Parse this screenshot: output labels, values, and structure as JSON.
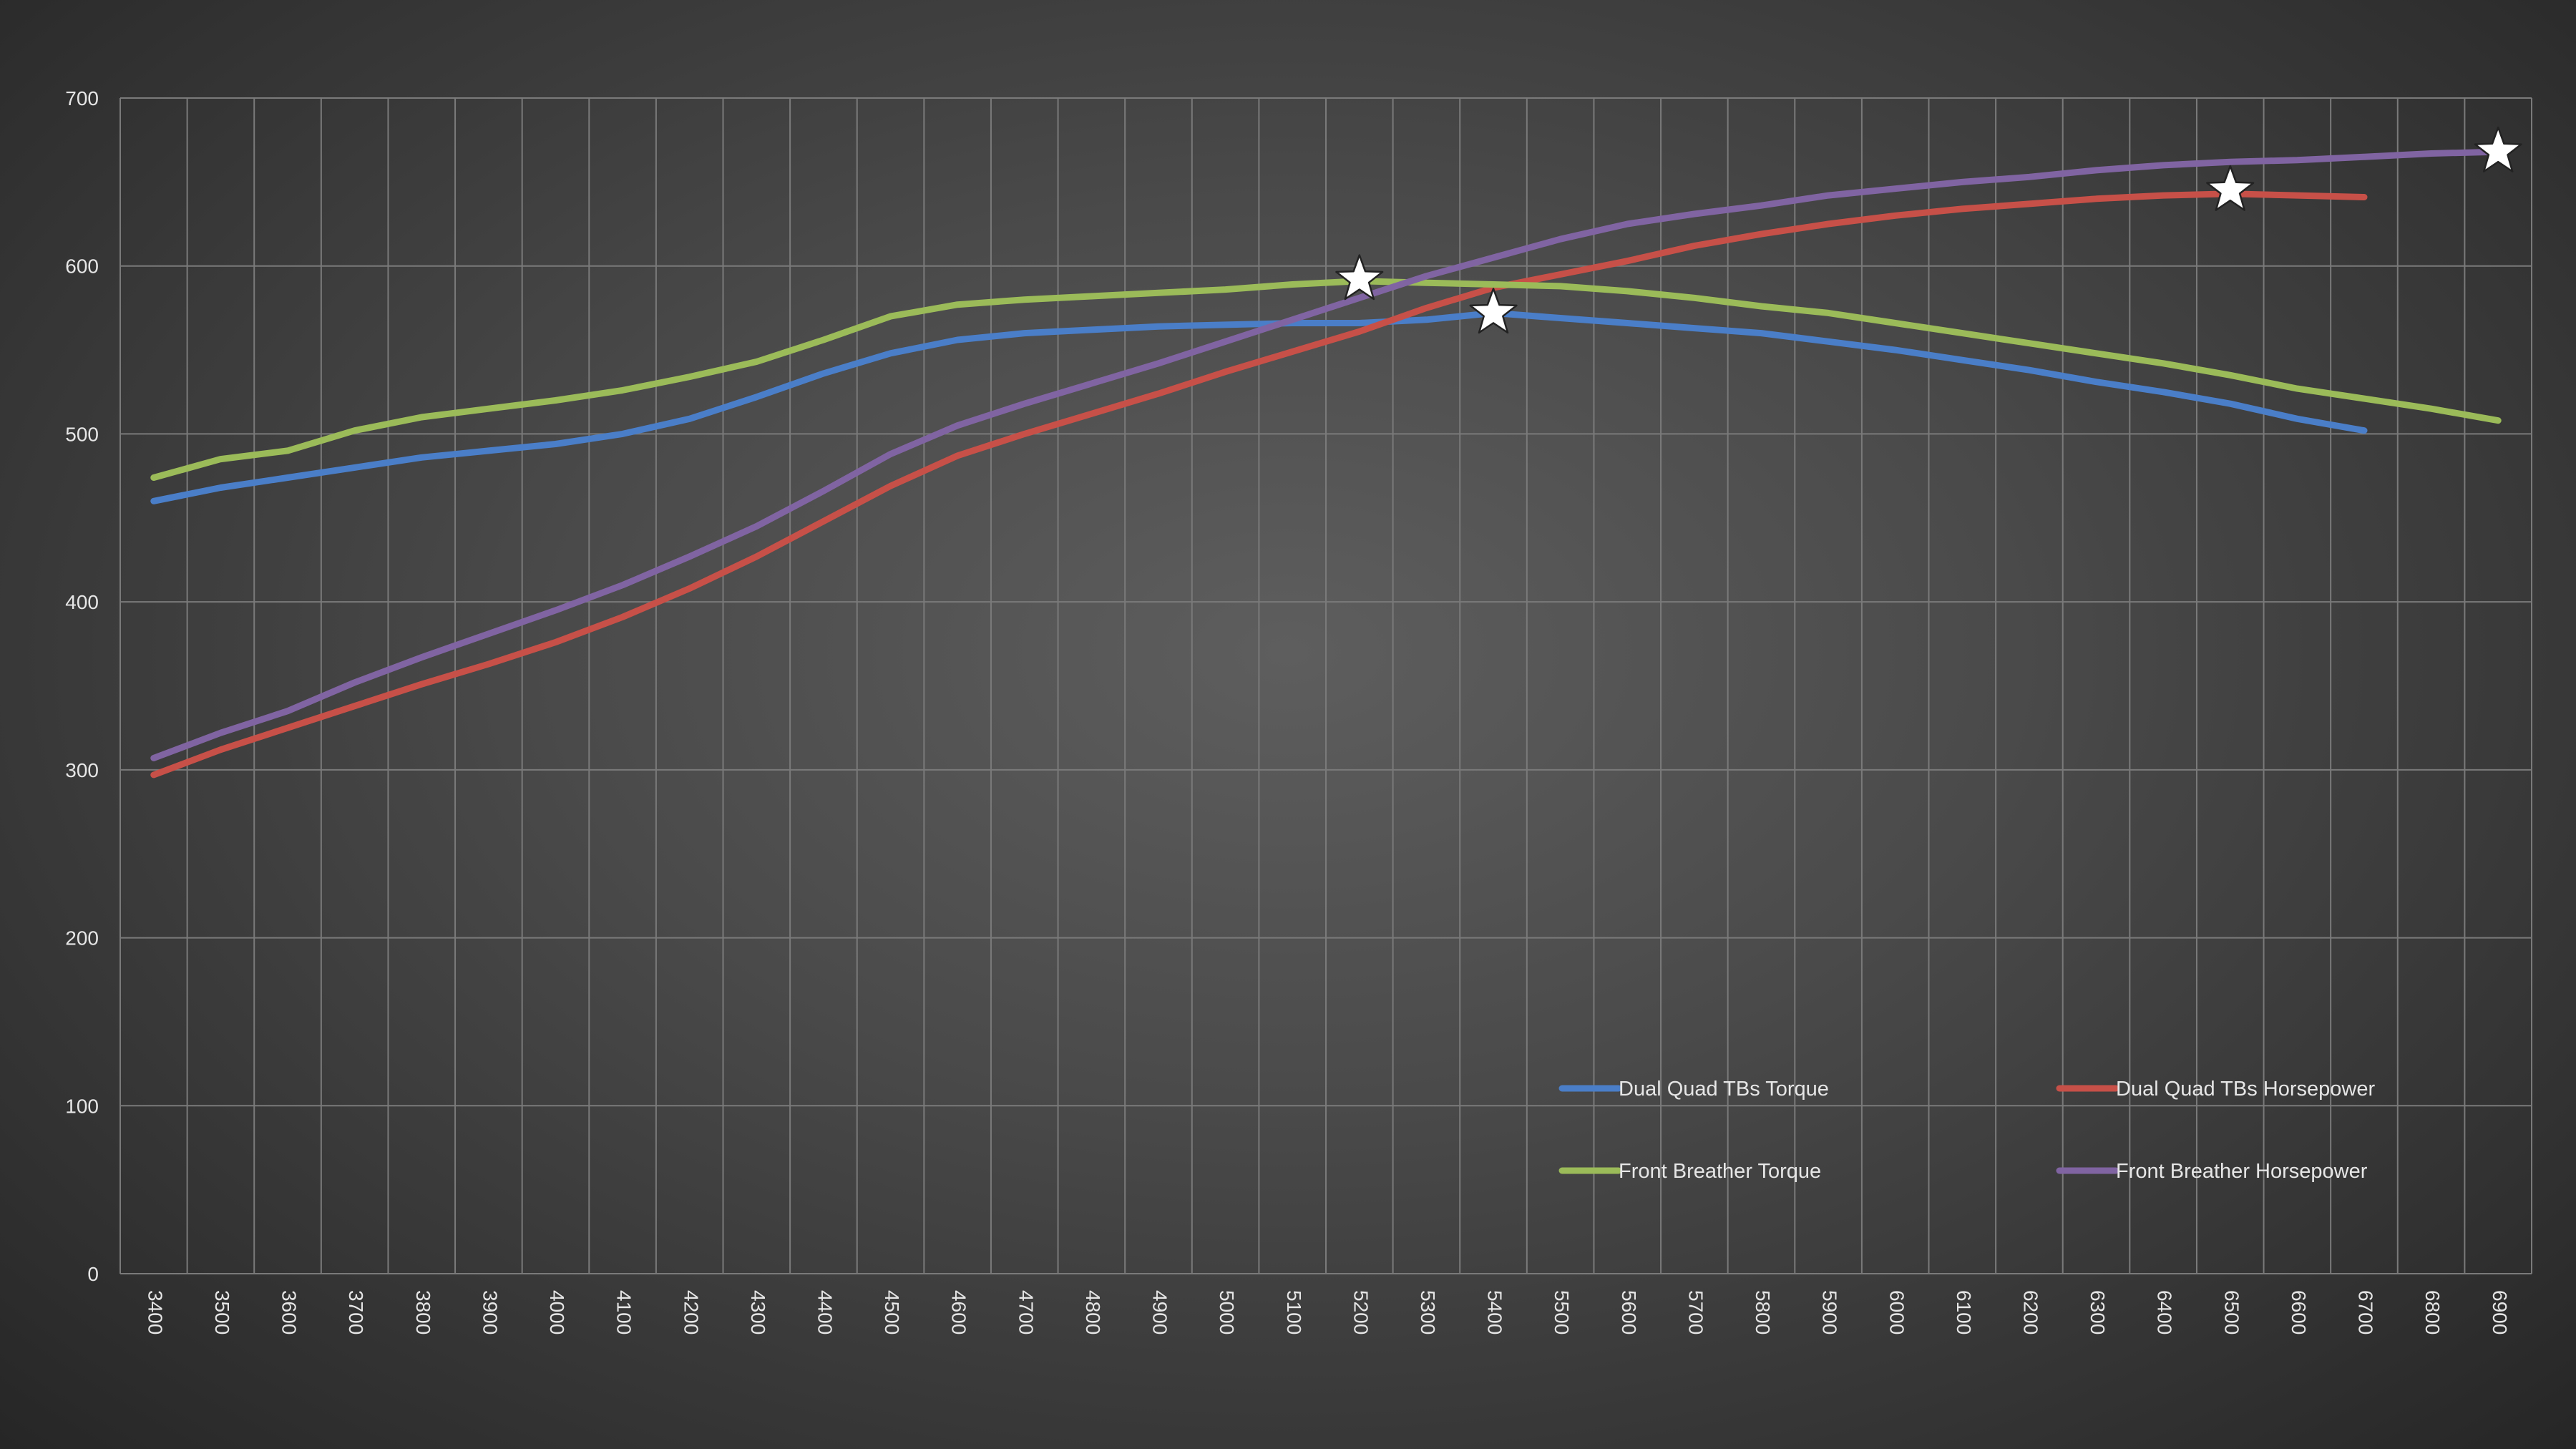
{
  "chart_data": {
    "type": "line",
    "title": "",
    "xlabel": "",
    "ylabel": "",
    "grid": true,
    "legend_position": "bottom-right",
    "ylim": [
      0,
      700
    ],
    "y_ticks": [
      0,
      100,
      200,
      300,
      400,
      500,
      600,
      700
    ],
    "x": [
      3400,
      3500,
      3600,
      3700,
      3800,
      3900,
      4000,
      4100,
      4200,
      4300,
      4400,
      4500,
      4600,
      4700,
      4800,
      4900,
      5000,
      5100,
      5200,
      5300,
      5400,
      5500,
      5600,
      5700,
      5800,
      5900,
      6000,
      6100,
      6200,
      6300,
      6400,
      6500,
      6600,
      6700,
      6800,
      6900
    ],
    "series": [
      {
        "name": "Dual Quad TBs Torque",
        "color": "#4a7ec8",
        "values": [
          460,
          468,
          474,
          480,
          486,
          490,
          494,
          500,
          509,
          522,
          536,
          548,
          556,
          560,
          562,
          564,
          565,
          566,
          566,
          568,
          572,
          569,
          566,
          563,
          560,
          555,
          550,
          544,
          538,
          531,
          525,
          518,
          509,
          502,
          null,
          null
        ],
        "marker": {
          "x": 5400,
          "y": 572
        }
      },
      {
        "name": "Dual Quad TBs Horsepower",
        "color": "#c75048",
        "values": [
          297,
          312,
          325,
          338,
          351,
          363,
          376,
          391,
          408,
          427,
          448,
          469,
          487,
          500,
          512,
          524,
          537,
          549,
          561,
          575,
          587,
          595,
          603,
          612,
          619,
          625,
          630,
          634,
          637,
          640,
          642,
          643,
          642,
          641,
          null,
          null
        ],
        "marker": {
          "x": 6500,
          "y": 645
        }
      },
      {
        "name": "Front Breather Torque",
        "color": "#9bbb59",
        "values": [
          474,
          485,
          490,
          502,
          510,
          515,
          520,
          526,
          534,
          543,
          556,
          570,
          577,
          580,
          582,
          584,
          586,
          589,
          591,
          590,
          589,
          588,
          585,
          581,
          576,
          572,
          566,
          560,
          554,
          548,
          542,
          535,
          527,
          521,
          515,
          508
        ],
        "marker": {
          "x": 5200,
          "y": 592
        }
      },
      {
        "name": "Front Breather Horsepower",
        "color": "#8064a2",
        "values": [
          307,
          322,
          335,
          352,
          367,
          381,
          395,
          410,
          427,
          445,
          466,
          488,
          505,
          518,
          530,
          542,
          555,
          568,
          581,
          594,
          605,
          616,
          625,
          631,
          636,
          642,
          646,
          650,
          653,
          657,
          660,
          662,
          663,
          665,
          667,
          668
        ],
        "marker": {
          "x": 6900,
          "y": 668
        }
      }
    ]
  },
  "legend": {
    "items": [
      {
        "label": "Dual Quad TBs Torque",
        "color": "#4a7ec8"
      },
      {
        "label": "Dual Quad TBs Horsepower",
        "color": "#c75048"
      },
      {
        "label": "Front Breather Torque",
        "color": "#9bbb59"
      },
      {
        "label": "Front Breather Horsepower",
        "color": "#8064a2"
      }
    ]
  },
  "colors": {
    "gridline": "#7a7a7a",
    "axis_text": "#e6e6e6",
    "marker_fill": "#ffffff"
  },
  "icons": {
    "peak_marker": "star-icon"
  }
}
